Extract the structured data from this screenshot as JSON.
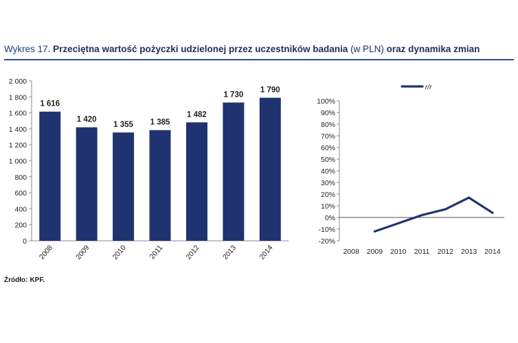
{
  "title": {
    "label": "Wykres 17.",
    "main": "Przeciętna wartość pożyczki udzielonej przez uczestników badania",
    "unit": "(w PLN)",
    "suffix": "oraz dynamika zmian"
  },
  "source": {
    "label": "Źródło:",
    "value": "KPF."
  },
  "colors": {
    "bar": "#1f3370",
    "line": "#1f3370",
    "title": "#1f3c87"
  },
  "chart_data": [
    {
      "type": "bar",
      "categories": [
        "2008",
        "2009",
        "2010",
        "2011",
        "2012",
        "2013",
        "2014"
      ],
      "values": [
        1616,
        1420,
        1355,
        1385,
        1482,
        1730,
        1790
      ],
      "value_labels": [
        "1 616",
        "1 420",
        "1 355",
        "1 385",
        "1 482",
        "1 730",
        "1 790"
      ],
      "yticks": [
        "0",
        "200",
        "400",
        "600",
        "800",
        "1 000",
        "1 200",
        "1 400",
        "1 600",
        "1 800",
        "2 000"
      ],
      "ylim": [
        0,
        2000
      ],
      "title": "",
      "xlabel": "",
      "ylabel": ""
    },
    {
      "type": "line",
      "categories": [
        "2008",
        "2009",
        "2010",
        "2011",
        "2012",
        "2013",
        "2014"
      ],
      "series": [
        {
          "name": "r/r",
          "values": [
            null,
            -0.12,
            -0.05,
            0.02,
            0.07,
            0.17,
            0.04
          ]
        }
      ],
      "yticks": [
        "-20%",
        "-10%",
        "0%",
        "10%",
        "20%",
        "30%",
        "40%",
        "50%",
        "60%",
        "70%",
        "80%",
        "90%",
        "100%"
      ],
      "ylim": [
        -0.2,
        1.0
      ],
      "legend": "top",
      "title": "",
      "xlabel": "",
      "ylabel": ""
    }
  ]
}
